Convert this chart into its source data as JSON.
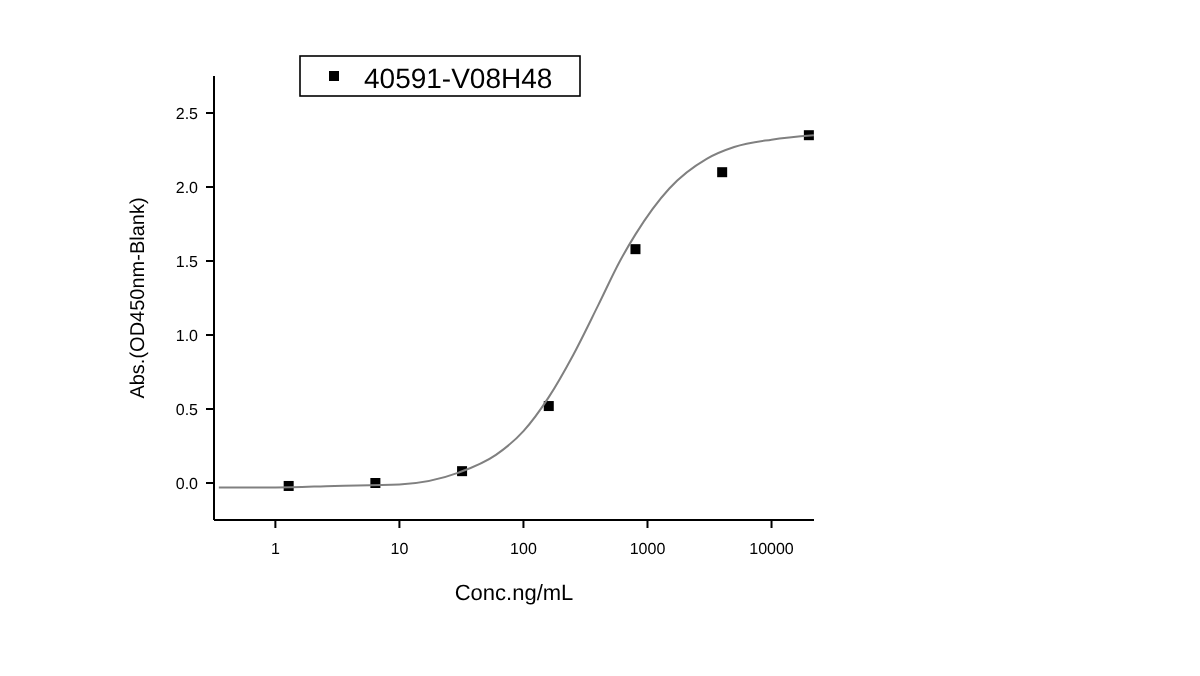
{
  "chart_data": {
    "type": "scatter",
    "xlabel": "Conc.ng/mL",
    "ylabel": "Abs.(OD450nm-Blank)",
    "log": "x",
    "legend": "top",
    "marker": "square",
    "xlim": [
      0.32,
      22000
    ],
    "xticks": [
      1,
      10,
      100,
      1000,
      10000
    ],
    "ylim": [
      -0.25,
      2.75
    ],
    "yticks": [
      {
        "value": 0,
        "label": "0.0"
      },
      0.5,
      {
        "value": 1,
        "label": "1.0"
      },
      1.5,
      {
        "value": 2,
        "label": "2.0"
      },
      2.5
    ],
    "series": [
      {
        "name": "40591-V08H48",
        "color": "#000000",
        "x": [
          1.28,
          6.4,
          32,
          160,
          800,
          4000,
          20000
        ],
        "values": [
          -0.02,
          0.0,
          0.08,
          0.52,
          1.58,
          2.1,
          2.35
        ]
      },
      {
        "type": "line",
        "color": "#808080",
        "marker": "none",
        "x": [
          0.35,
          1,
          3,
          10,
          30,
          60,
          100,
          160,
          250,
          400,
          600,
          800,
          1500,
          3000,
          5000,
          10000,
          22000
        ],
        "values": [
          -0.03,
          -0.03,
          -0.02,
          -0.01,
          0.07,
          0.19,
          0.35,
          0.58,
          0.86,
          1.2,
          1.5,
          1.68,
          1.99,
          2.19,
          2.27,
          2.32,
          2.35
        ]
      }
    ]
  }
}
